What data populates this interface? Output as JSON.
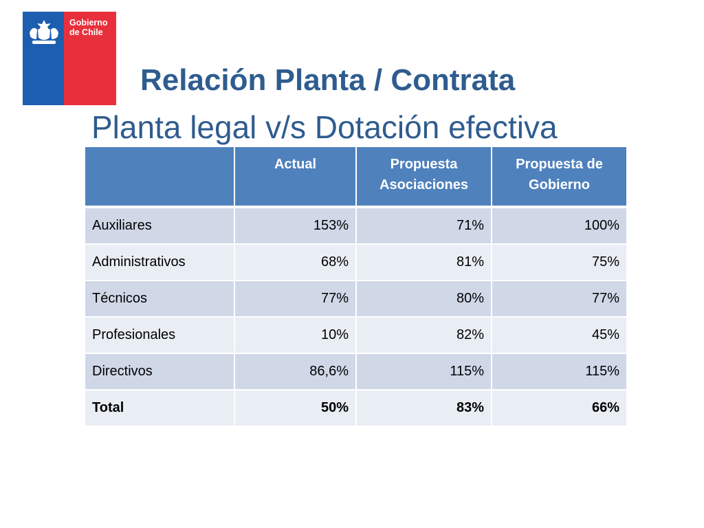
{
  "logo": {
    "line1": "Gobierno",
    "line2": "de Chile",
    "icon": "coat-of-arms-icon"
  },
  "title": "Relación Planta / Contrata",
  "subtitle": "Planta legal v/s Dotación efectiva",
  "colors": {
    "title": "#2f5c8f",
    "header_bg": "#4f81bd",
    "row_odd": "#d0d8e8",
    "row_even": "#e9edf4",
    "logo_blue": "#1d5eb0",
    "logo_red": "#e8303c"
  },
  "table": {
    "headers": [
      "",
      "Actual",
      "Propuesta Asociaciones",
      "Propuesta de Gobierno"
    ],
    "rows": [
      [
        "Auxiliares",
        "153%",
        "71%",
        "100%"
      ],
      [
        "Administrativos",
        "68%",
        "81%",
        "75%"
      ],
      [
        "Técnicos",
        "77%",
        "80%",
        "77%"
      ],
      [
        "Profesionales",
        "10%",
        "82%",
        "45%"
      ],
      [
        "Directivos",
        "86,6%",
        "115%",
        "115%"
      ],
      [
        "Total",
        "50%",
        "83%",
        "66%"
      ]
    ]
  }
}
